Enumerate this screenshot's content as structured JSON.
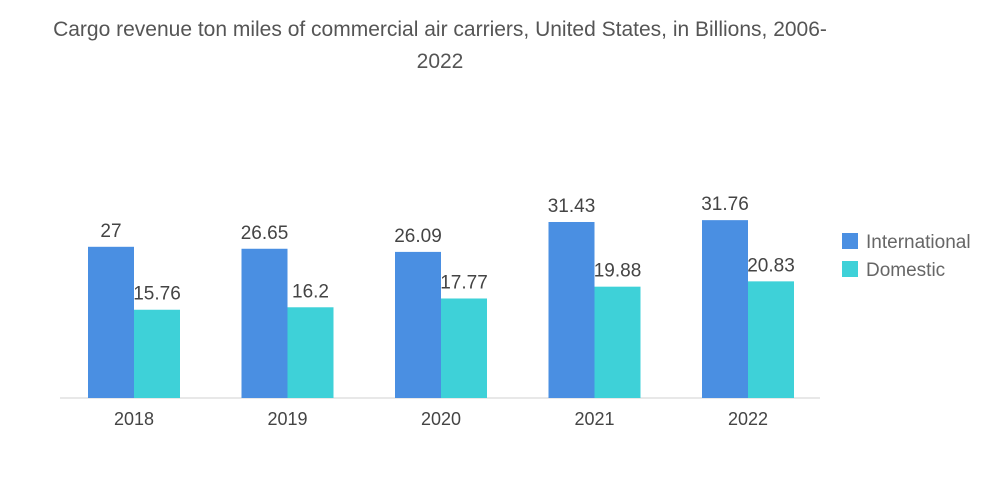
{
  "chart_data": {
    "type": "bar",
    "title": "Cargo revenue ton miles of commercial air carriers, United States, in Billions, 2006-2022",
    "categories": [
      "2018",
      "2019",
      "2020",
      "2021",
      "2022"
    ],
    "series": [
      {
        "name": "International",
        "values": [
          27,
          26.65,
          26.09,
          31.43,
          31.76
        ],
        "color": "#4a8fe2"
      },
      {
        "name": "Domestic",
        "values": [
          15.76,
          16.2,
          17.77,
          19.88,
          20.83
        ],
        "color": "#3ed1d8"
      }
    ],
    "value_labels": [
      [
        "27",
        "26.65",
        "26.09",
        "31.43",
        "31.76"
      ],
      [
        "15.76",
        "16.2",
        "17.77",
        "19.88",
        "20.83"
      ]
    ],
    "xlabel": "",
    "ylabel": "",
    "grid": false,
    "legend_position": "right"
  }
}
